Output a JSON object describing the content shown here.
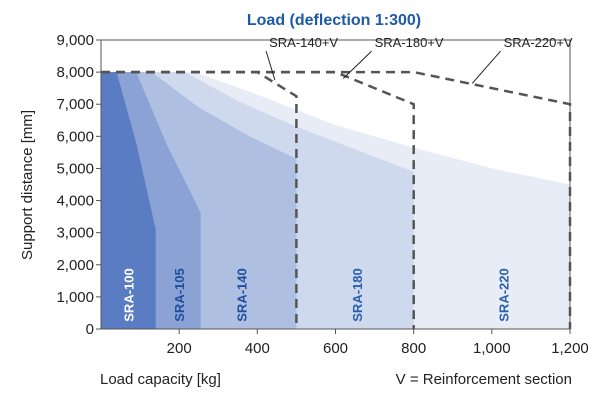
{
  "chart_data": {
    "type": "area",
    "title": "Load (deflection 1:300)",
    "xlabel": "Load capacity [kg]",
    "ylabel": "Support distance [mm]",
    "note": "V = Reinforcement section",
    "xlim": [
      0,
      1200
    ],
    "ylim": [
      0,
      9000
    ],
    "x_ticks": [
      {
        "value": 200,
        "label": "200"
      },
      {
        "value": 400,
        "label": "400"
      },
      {
        "value": 600,
        "label": "600"
      },
      {
        "value": 800,
        "label": "800"
      },
      {
        "value": 1000,
        "label": "1,000"
      },
      {
        "value": 1200,
        "label": "1,200"
      }
    ],
    "y_ticks": [
      {
        "value": 0,
        "label": "0"
      },
      {
        "value": 1000,
        "label": "1,000"
      },
      {
        "value": 2000,
        "label": "2,000"
      },
      {
        "value": 3000,
        "label": "3,000"
      },
      {
        "value": 4000,
        "label": "4,000"
      },
      {
        "value": 5000,
        "label": "5,000"
      },
      {
        "value": 6000,
        "label": "6,000"
      },
      {
        "value": 7000,
        "label": "7,000"
      },
      {
        "value": 8000,
        "label": "8,000"
      },
      {
        "value": 9000,
        "label": "9,000"
      }
    ],
    "series": [
      {
        "name": "SRA-220",
        "color": "#e7ecf6",
        "label_color": "#2a5fae",
        "label_x": 1030,
        "points": [
          [
            0,
            8000
          ],
          [
            240,
            8000
          ],
          [
            400,
            7300
          ],
          [
            600,
            6350
          ],
          [
            800,
            5650
          ],
          [
            1000,
            5000
          ],
          [
            1200,
            4500
          ],
          [
            1200,
            0
          ],
          [
            0,
            0
          ]
        ]
      },
      {
        "name": "SRA-180",
        "color": "#cfd9ee",
        "label_color": "#2a5fae",
        "label_x": 655,
        "points": [
          [
            0,
            8000
          ],
          [
            215,
            8000
          ],
          [
            350,
            7100
          ],
          [
            500,
            6300
          ],
          [
            650,
            5600
          ],
          [
            800,
            4900
          ],
          [
            800,
            0
          ],
          [
            0,
            0
          ]
        ]
      },
      {
        "name": "SRA-140",
        "color": "#aebfe2",
        "label_color": "#1f4e9c",
        "label_x": 360,
        "points": [
          [
            0,
            8000
          ],
          [
            130,
            8000
          ],
          [
            250,
            6900
          ],
          [
            380,
            6000
          ],
          [
            500,
            5300
          ],
          [
            500,
            0
          ],
          [
            0,
            0
          ]
        ]
      },
      {
        "name": "SRA-105",
        "color": "#8ba2d5",
        "label_color": "#1f4e9c",
        "label_x": 200,
        "points": [
          [
            0,
            8000
          ],
          [
            90,
            8000
          ],
          [
            170,
            5700
          ],
          [
            240,
            4000
          ],
          [
            255,
            3600
          ],
          [
            255,
            0
          ],
          [
            0,
            0
          ]
        ]
      },
      {
        "name": "SRA-100",
        "color": "#5a7cc2",
        "label_color": "#ffffff",
        "label_x": 70,
        "points": [
          [
            0,
            8000
          ],
          [
            40,
            8000
          ],
          [
            90,
            5800
          ],
          [
            140,
            3100
          ],
          [
            140,
            0
          ],
          [
            0,
            0
          ]
        ]
      }
    ],
    "reinforcement_limits": [
      {
        "name": "SRA-140+V",
        "points": [
          [
            0,
            8000
          ],
          [
            400,
            8000
          ],
          [
            500,
            7250
          ],
          [
            500,
            0
          ]
        ],
        "label_x": 430,
        "label_y": 8780,
        "leader_to": [
          445,
          7750
        ]
      },
      {
        "name": "SRA-180+V",
        "points": [
          [
            0,
            8000
          ],
          [
            600,
            8000
          ],
          [
            800,
            7000
          ],
          [
            800,
            0
          ]
        ],
        "label_x": 700,
        "label_y": 8780,
        "leader_to": [
          620,
          7800
        ]
      },
      {
        "name": "SRA-220+V",
        "points": [
          [
            0,
            8000
          ],
          [
            800,
            8000
          ],
          [
            1200,
            7000
          ],
          [
            1200,
            0
          ]
        ],
        "label_x": 1030,
        "label_y": 8780,
        "leader_to": [
          950,
          7650
        ]
      }
    ]
  }
}
